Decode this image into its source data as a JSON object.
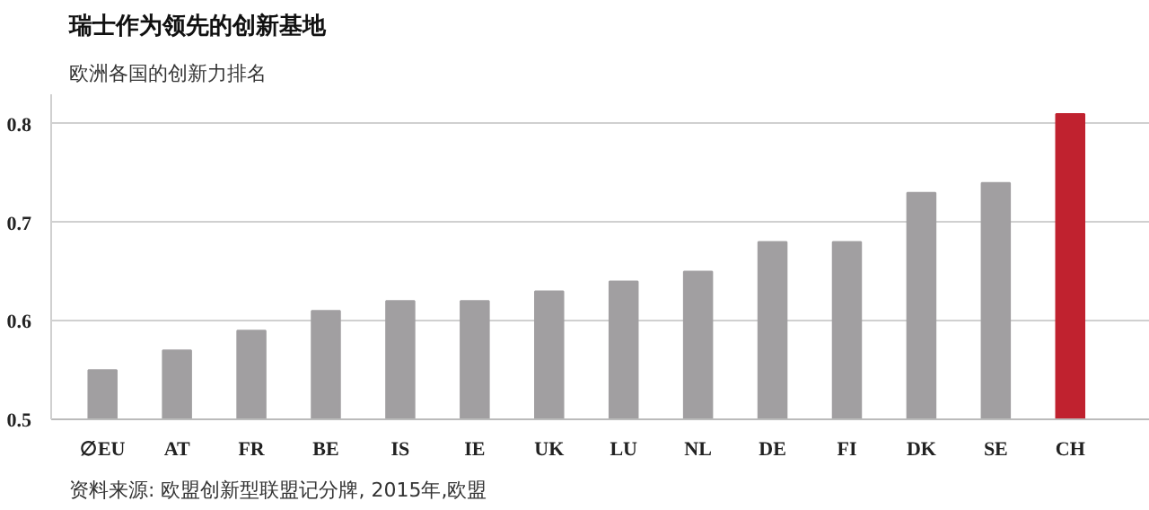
{
  "chart_data": {
    "type": "bar",
    "title": "瑞士作为领先的创新基地",
    "subtitle": "欧洲各国的创新力排名",
    "categories": [
      "∅EU",
      "AT",
      "FR",
      "BE",
      "IS",
      "IE",
      "UK",
      "LU",
      "NL",
      "DE",
      "FI",
      "DK",
      "SE",
      "CH"
    ],
    "values": [
      0.55,
      0.57,
      0.59,
      0.61,
      0.62,
      0.62,
      0.63,
      0.64,
      0.65,
      0.68,
      0.68,
      0.73,
      0.74,
      0.81
    ],
    "colors": [
      "#a19fa1",
      "#a19fa1",
      "#a19fa1",
      "#a19fa1",
      "#a19fa1",
      "#a19fa1",
      "#a19fa1",
      "#a19fa1",
      "#a19fa1",
      "#a19fa1",
      "#a19fa1",
      "#a19fa1",
      "#a19fa1",
      "#c0222f"
    ],
    "ylim": [
      0.5,
      0.83
    ],
    "yticks": [
      0.5,
      0.6,
      0.7,
      0.8
    ],
    "grid": "y",
    "annotations": [
      "资料来源: 欧盟创新型联盟记分牌, 2015年,欧盟"
    ]
  }
}
